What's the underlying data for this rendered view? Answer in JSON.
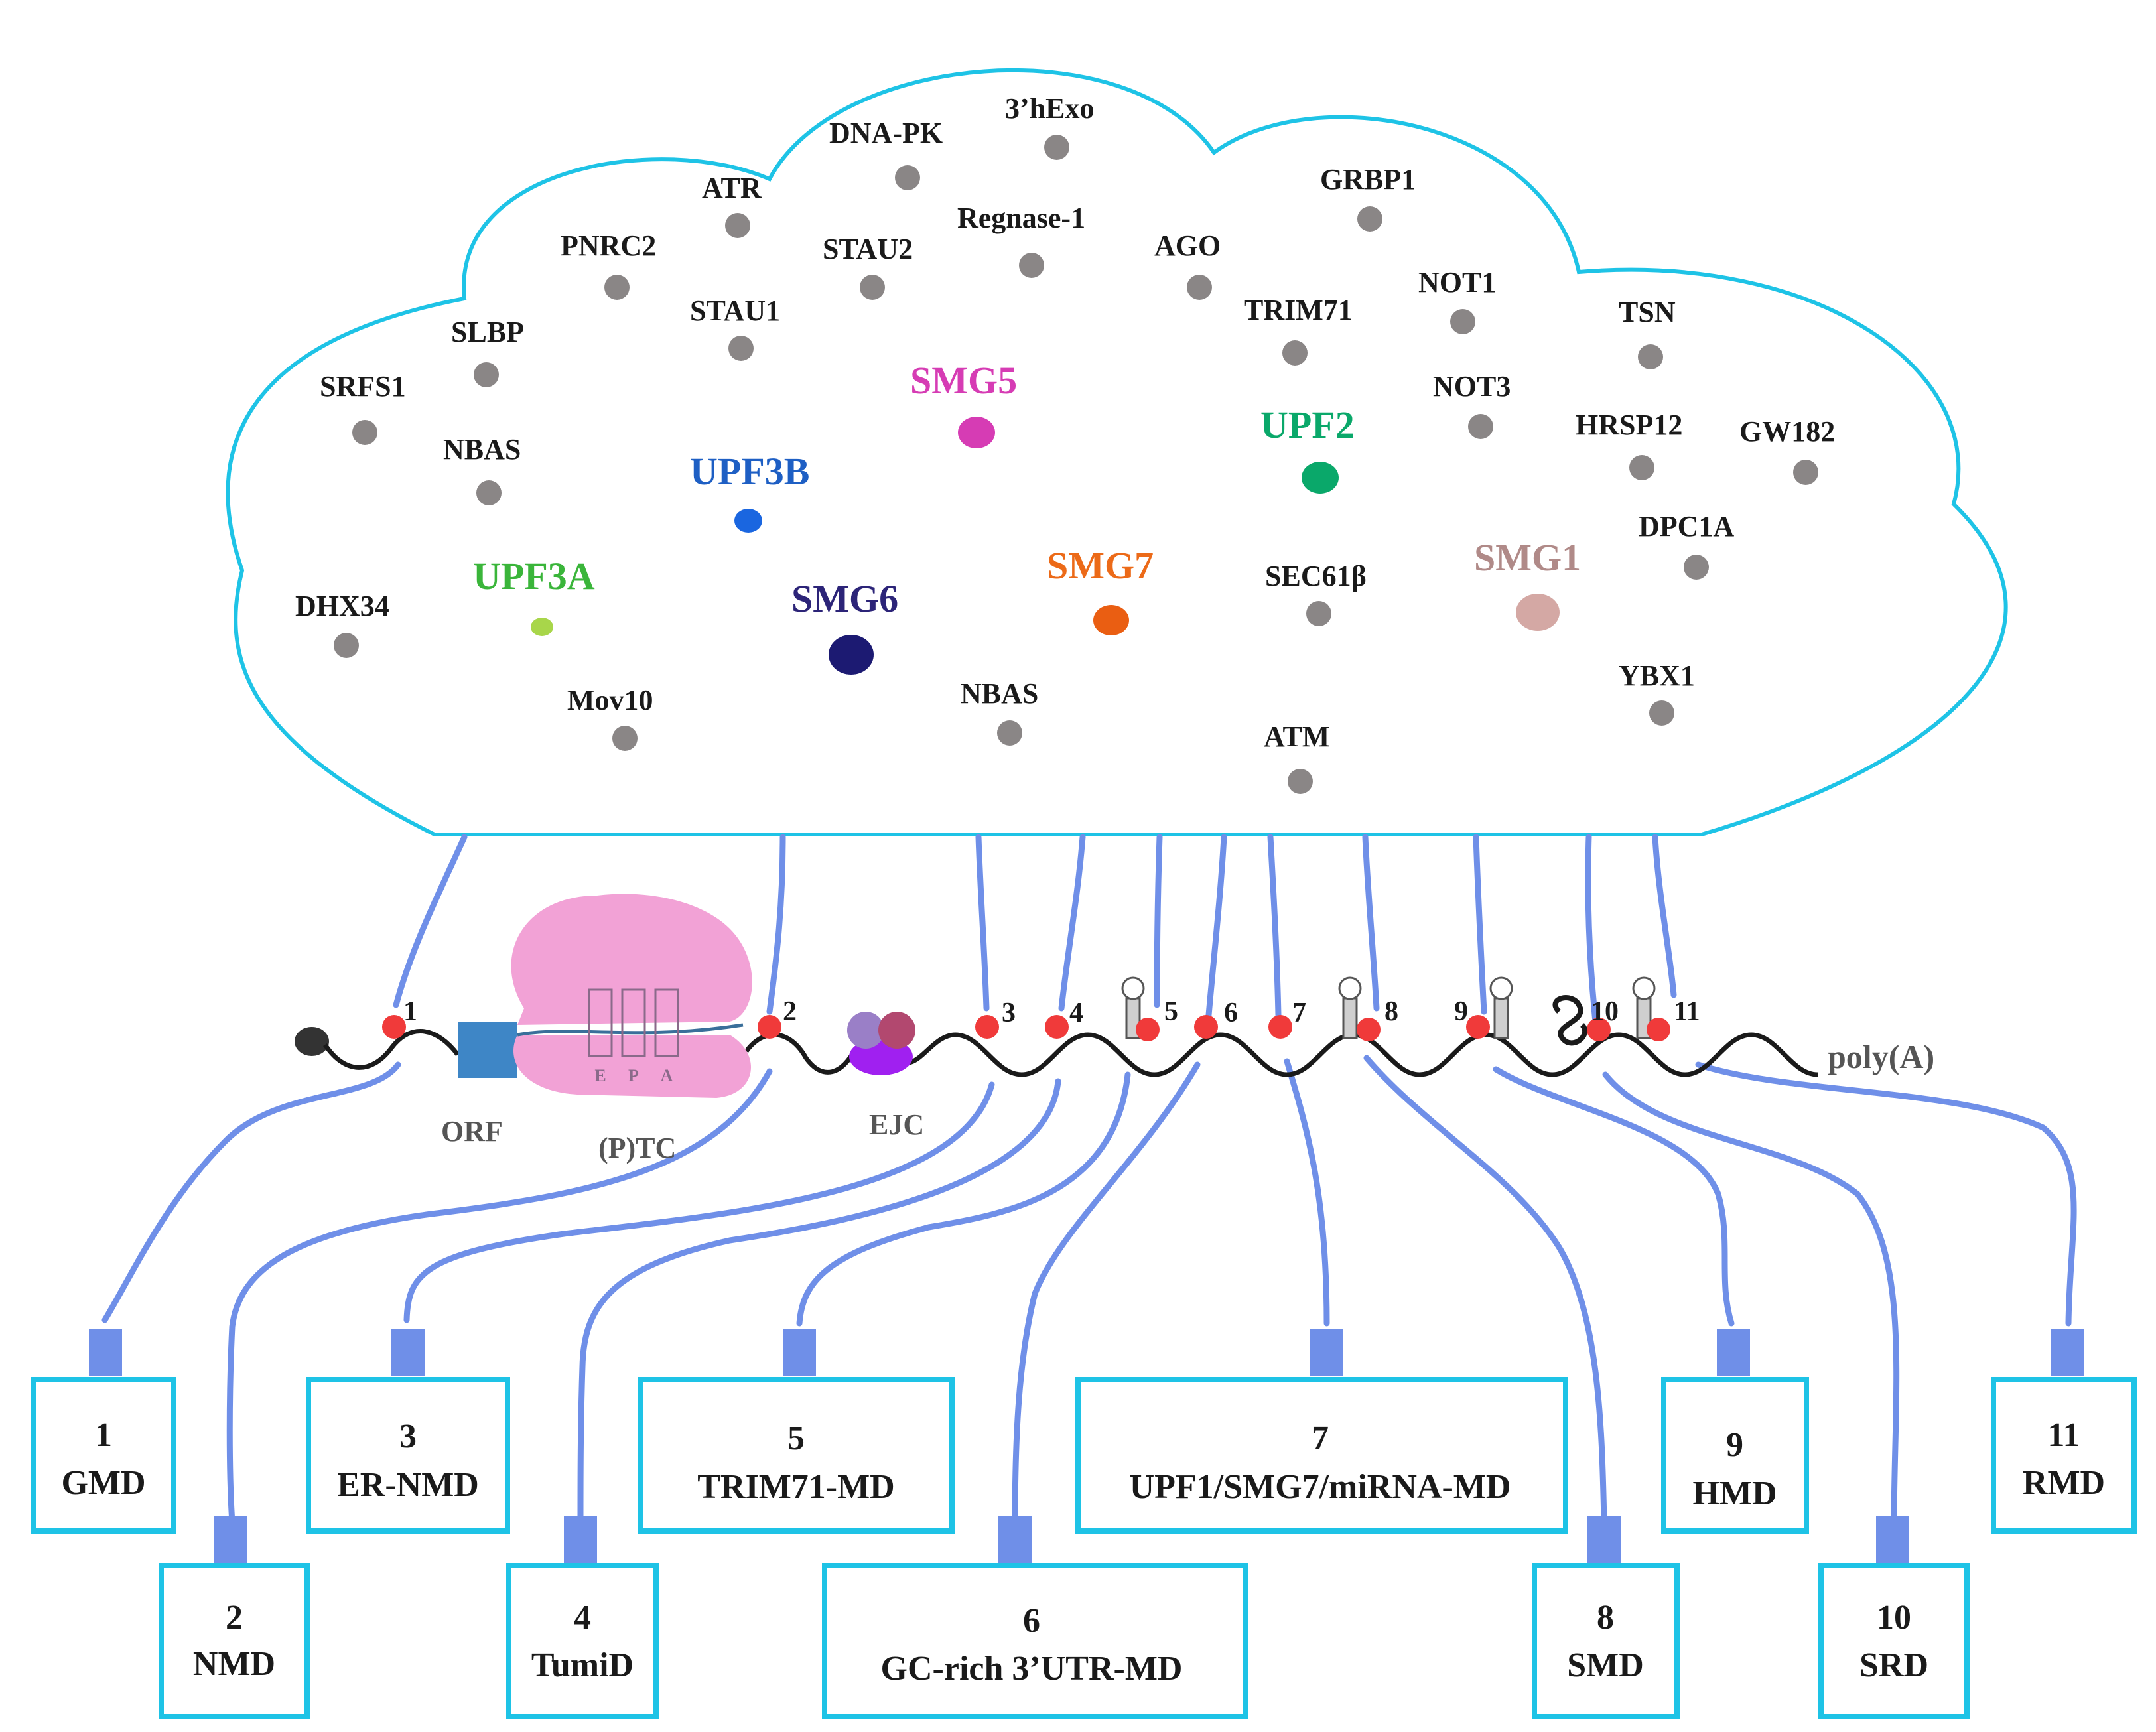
{
  "colors": {
    "cloud_stroke": "#1ec3e6",
    "connector": "#6f8fe8",
    "box_stroke": "#1ec3e6",
    "protein_dot": "#8a8686",
    "site_dot": "#f03a3a",
    "ribosome": "#f2a2d6",
    "orf_block": "#3e86c6",
    "ejc_purple": "#a020f0",
    "ejc_lilac": "#9a7fc7",
    "ejc_plum": "#b2486f",
    "text_dark": "#1a1a1a",
    "label_gray": "#555555"
  },
  "proteins": {
    "dna_pk": "DNA-PK",
    "three_hexo": "3’hExo",
    "atr": "ATR",
    "regnase1": "Regnase-1",
    "grbp1": "GRBP1",
    "pnrc2": "PNRC2",
    "stau2": "STAU2",
    "ago": "AGO",
    "not1": "NOT1",
    "stau1": "STAU1",
    "trim71": "TRIM71",
    "tsn": "TSN",
    "slbp": "SLBP",
    "srfs1": "SRFS1",
    "not3": "NOT3",
    "hrsp12": "HRSP12",
    "gw182": "GW182",
    "nbas_top": "NBAS",
    "dpc1a": "DPC1A",
    "sec61b": "SEC61β",
    "dhx34": "DHX34",
    "ybx1": "YBX1",
    "mov10": "Mov10",
    "nbas_bottom": "NBAS",
    "atm": "ATM"
  },
  "core_factors": [
    {
      "key": "smg5",
      "label": "SMG5",
      "color": "#d63cb4"
    },
    {
      "key": "upf2",
      "label": "UPF2",
      "color": "#0aa86a"
    },
    {
      "key": "upf3b",
      "label": "UPF3B",
      "color": "#1e5fc4"
    },
    {
      "key": "smg1",
      "label": "SMG1",
      "color": "#b08a88"
    },
    {
      "key": "upf3a",
      "label": "UPF3A",
      "color": "#3ab53a"
    },
    {
      "key": "smg6",
      "label": "SMG6",
      "color": "#2c2478"
    },
    {
      "key": "smg7",
      "label": "SMG7",
      "color": "#ec6a18"
    }
  ],
  "core_dot_colors": {
    "smg5": "#d63cb4",
    "upf2": "#0aa86a",
    "upf3b": "#1a66e0",
    "smg1": "#d4a8a4",
    "upf3a": "#a8d64a",
    "smg6": "#1c1a72",
    "smg7": "#ea5e12"
  },
  "mrna": {
    "orf_label": "ORF",
    "ptc_label": "(P)TC",
    "ejc_label": "EJC",
    "polya_label": "poly(A)",
    "ribosome_sites": [
      "E",
      "P",
      "A"
    ],
    "site_numbers": [
      "1",
      "2",
      "3",
      "4",
      "5",
      "6",
      "7",
      "8",
      "9",
      "10",
      "11"
    ]
  },
  "pathways": [
    {
      "number": "1",
      "name": "GMD"
    },
    {
      "number": "2",
      "name": "NMD"
    },
    {
      "number": "3",
      "name": "ER-NMD"
    },
    {
      "number": "4",
      "name": "TumiD"
    },
    {
      "number": "5",
      "name": "TRIM71-MD"
    },
    {
      "number": "6",
      "name": "GC-rich 3’UTR-MD"
    },
    {
      "number": "7",
      "name": "UPF1/SMG7/miRNA-MD"
    },
    {
      "number": "8",
      "name": "SMD"
    },
    {
      "number": "9",
      "name": "HMD"
    },
    {
      "number": "10",
      "name": "SRD"
    },
    {
      "number": "11",
      "name": "RMD"
    }
  ]
}
